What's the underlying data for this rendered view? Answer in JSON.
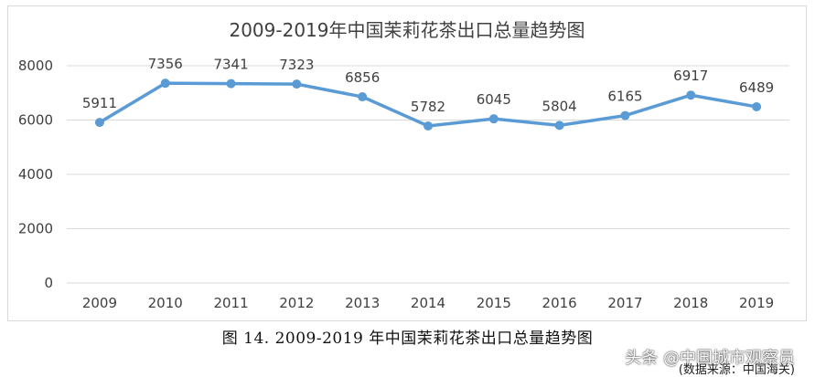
{
  "chart_data": {
    "type": "line",
    "title": "2009-2019年中国茉莉花茶出口总量趋势图",
    "categories": [
      "2009",
      "2010",
      "2011",
      "2012",
      "2013",
      "2014",
      "2015",
      "2016",
      "2017",
      "2018",
      "2019"
    ],
    "series": [
      {
        "values": [
          5911,
          7356,
          7341,
          7323,
          6856,
          5782,
          6045,
          5804,
          6165,
          6917,
          6489
        ]
      }
    ],
    "ylim": [
      0,
      8000
    ],
    "yticks": [
      "0",
      "2000",
      "4000",
      "6000",
      "8000"
    ],
    "grid": true,
    "line_color": "#5b9bd5",
    "grid_color": "#d9d9d9"
  },
  "caption": "图 14. 2009-2019 年中国茉莉花茶出口总量趋势图",
  "watermark": "头条 @中国城市观察员",
  "source_note": "(数据来源：中国海关)"
}
